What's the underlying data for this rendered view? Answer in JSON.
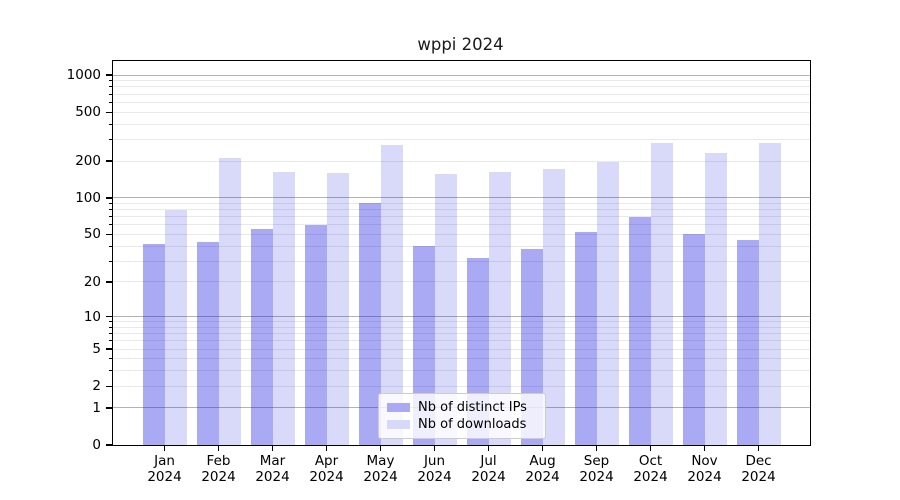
{
  "chart_data": {
    "type": "bar",
    "title": "wppi 2024",
    "categories": [
      "Jan 2024",
      "Feb 2024",
      "Mar 2024",
      "Apr 2024",
      "May 2024",
      "Jun 2024",
      "Jul 2024",
      "Aug 2024",
      "Sep 2024",
      "Oct 2024",
      "Nov 2024",
      "Dec 2024"
    ],
    "series": [
      {
        "name": "Nb of distinct IPs",
        "values": [
          42,
          43,
          55,
          60,
          91,
          40,
          32,
          38,
          52,
          70,
          50,
          45
        ],
        "color": "#0202de",
        "alpha": 0.34,
        "legend_color": "#a9a9f4"
      },
      {
        "name": "Nb of downloads",
        "values": [
          80,
          212,
          164,
          161,
          270,
          158,
          162,
          172,
          197,
          281,
          232,
          281
        ],
        "color": "#0202de",
        "alpha": 0.15,
        "legend_color": "#d8d8f9"
      }
    ],
    "y_scale": "log1p",
    "ylim": [
      0,
      1300
    ],
    "y_ticks": [
      1000,
      500,
      200,
      100,
      50,
      20,
      10,
      5,
      2,
      1,
      0
    ],
    "y_major_gridlines": [
      1,
      10,
      100,
      1000
    ],
    "xlabel": "",
    "ylabel": "",
    "grid": true,
    "legend_position": "lower center"
  },
  "axis_colors": {
    "grid_major": "#b3b3b3",
    "grid_minor": "#e9e9ec",
    "spine": "#000000",
    "tick_label": "#000000"
  }
}
